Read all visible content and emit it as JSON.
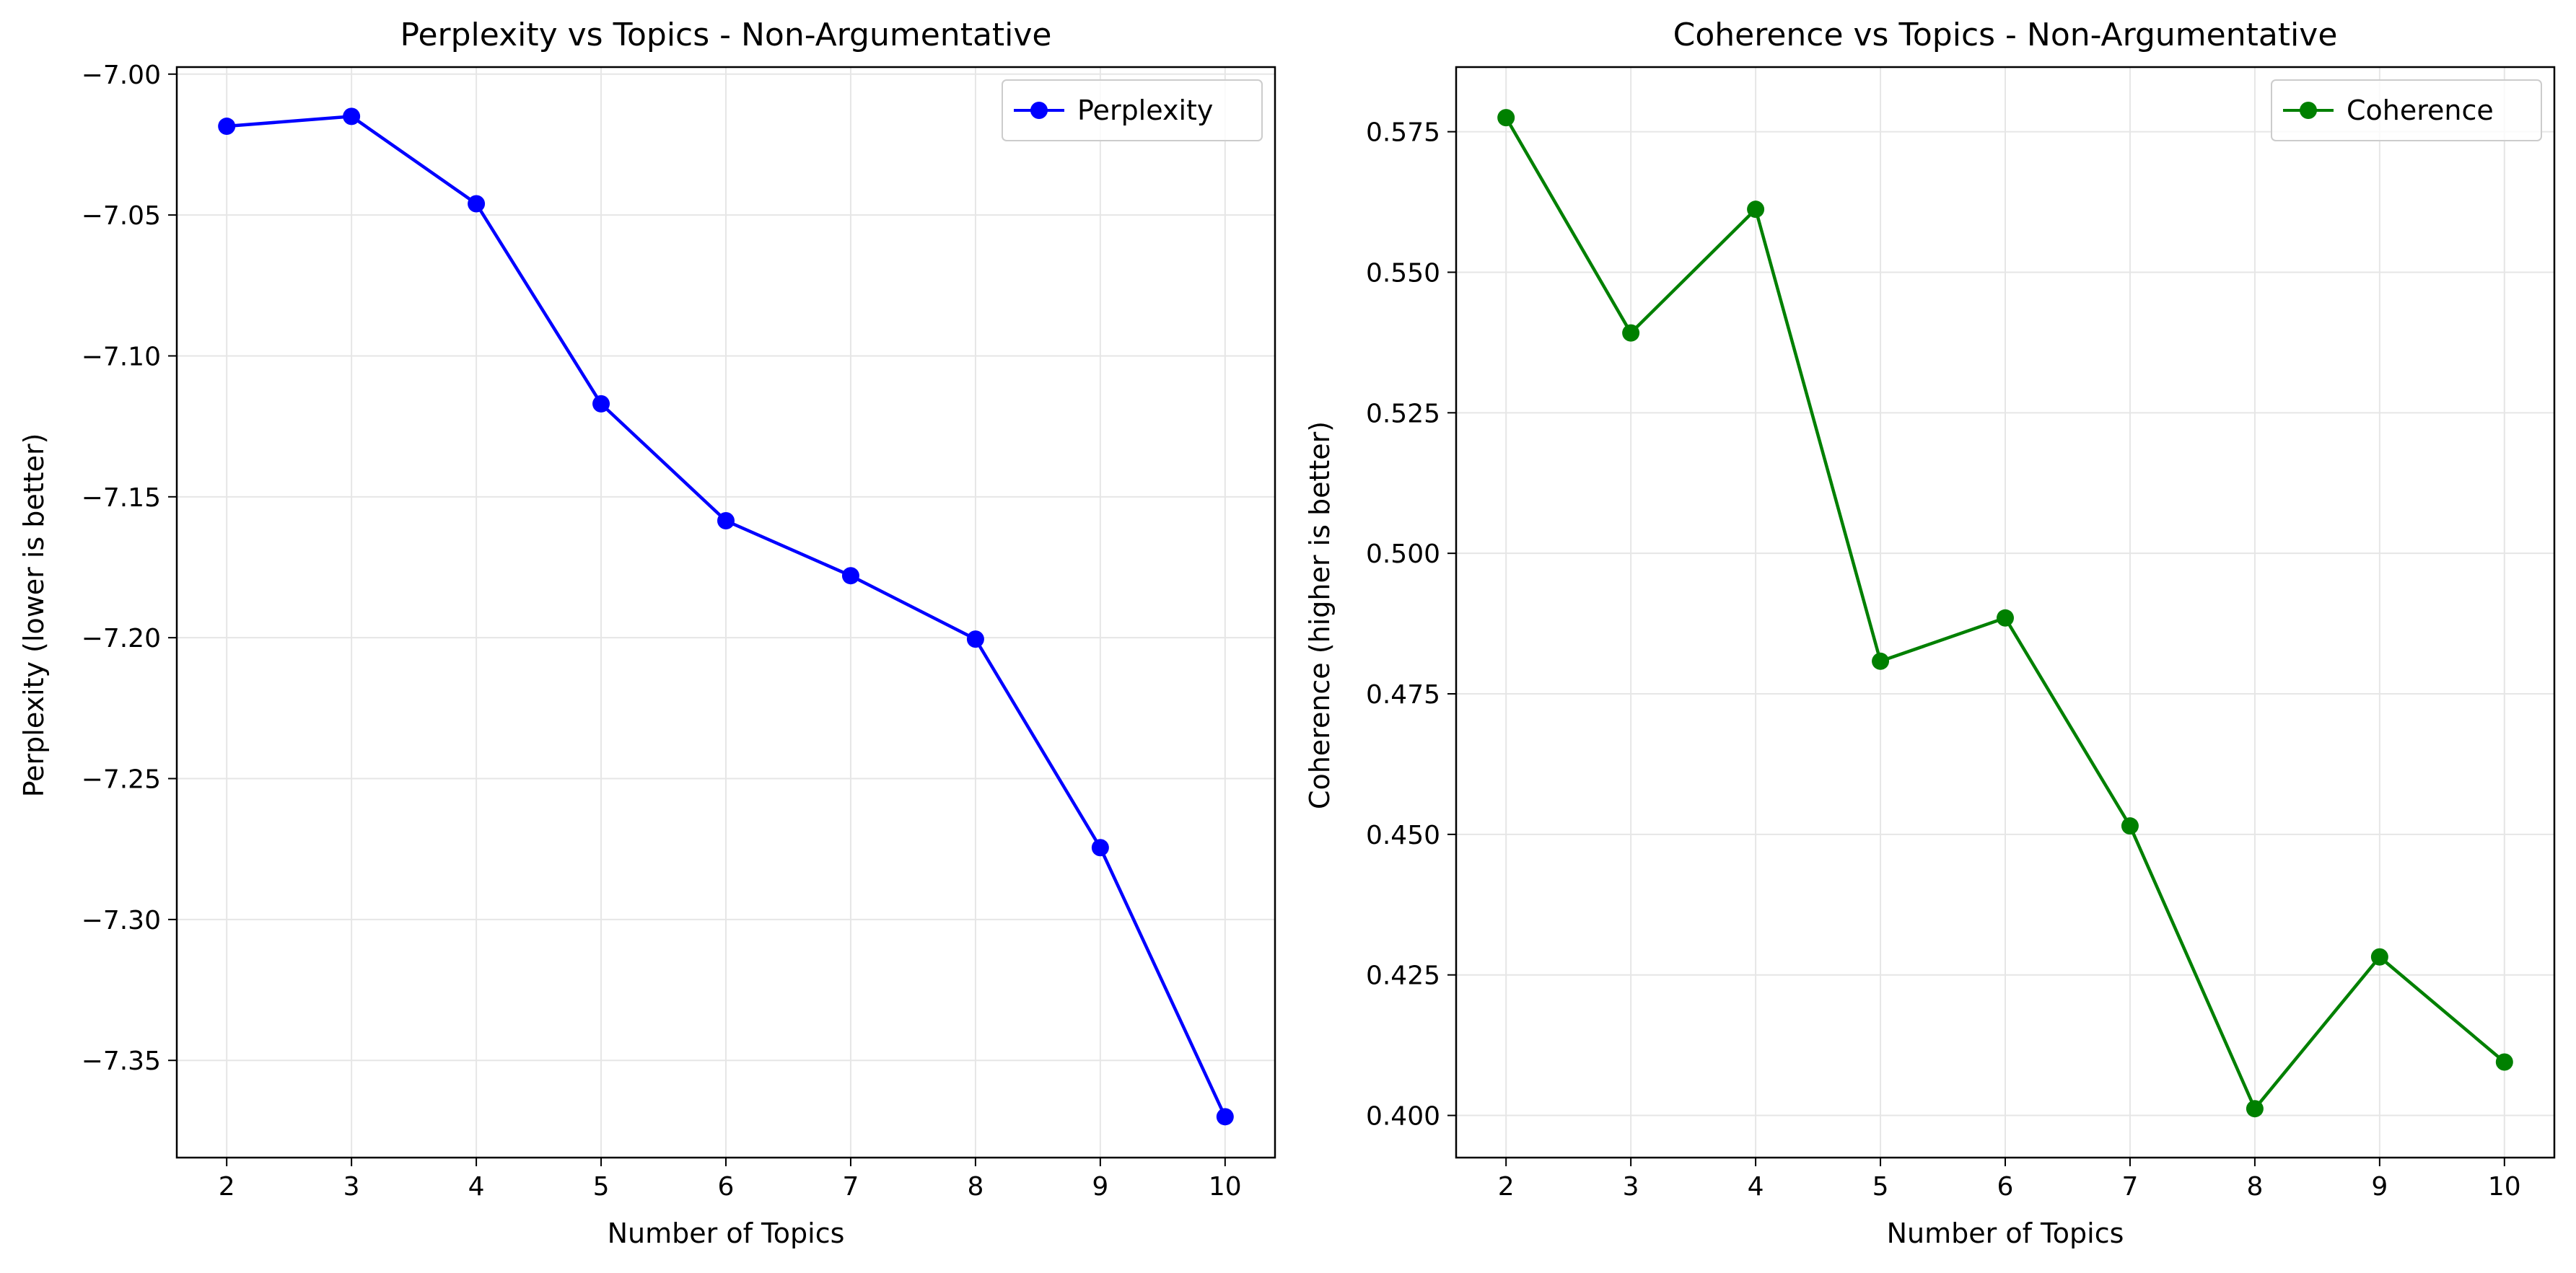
{
  "chart_data": [
    {
      "type": "line",
      "title": "Perplexity vs Topics - Non-Argumentative",
      "xlabel": "Number of Topics",
      "ylabel": "Perplexity (lower is better)",
      "x": [
        2,
        3,
        4,
        5,
        6,
        7,
        8,
        9,
        10
      ],
      "xticks": [
        "2",
        "3",
        "4",
        "5",
        "6",
        "7",
        "8",
        "9",
        "10"
      ],
      "xlim": [
        1.6,
        10.4
      ],
      "ylim": [
        -7.3845,
        -6.9975
      ],
      "yticks": [
        -7.35,
        -7.3,
        -7.25,
        -7.2,
        -7.15,
        -7.1,
        -7.05,
        -7.0
      ],
      "ytick_labels": [
        "−7.35",
        "−7.30",
        "−7.25",
        "−7.20",
        "−7.15",
        "−7.10",
        "−7.05",
        "−7.00"
      ],
      "grid": true,
      "legend_position": "top-right",
      "series": [
        {
          "name": "Perplexity",
          "color": "#0000ff",
          "marker": "circle",
          "values": [
            -7.0185,
            -7.015,
            -7.046,
            -7.117,
            -7.1585,
            -7.178,
            -7.2005,
            -7.2745,
            -7.37
          ]
        }
      ]
    },
    {
      "type": "line",
      "title": "Coherence vs Topics - Non-Argumentative",
      "xlabel": "Number of Topics",
      "ylabel": "Coherence (higher is better)",
      "x": [
        2,
        3,
        4,
        5,
        6,
        7,
        8,
        9,
        10
      ],
      "xticks": [
        "2",
        "3",
        "4",
        "5",
        "6",
        "7",
        "8",
        "9",
        "10"
      ],
      "xlim": [
        1.6,
        10.4
      ],
      "ylim": [
        0.3925,
        0.5865
      ],
      "yticks": [
        0.4,
        0.425,
        0.45,
        0.475,
        0.5,
        0.525,
        0.55,
        0.575
      ],
      "ytick_labels": [
        "0.400",
        "0.425",
        "0.450",
        "0.475",
        "0.500",
        "0.525",
        "0.550",
        "0.575"
      ],
      "grid": true,
      "legend_position": "top-right",
      "series": [
        {
          "name": "Coherence",
          "color": "#008000",
          "marker": "circle",
          "values": [
            0.5775,
            0.5392,
            0.5612,
            0.4808,
            0.4885,
            0.4515,
            0.4012,
            0.4282,
            0.4095
          ]
        }
      ]
    }
  ]
}
